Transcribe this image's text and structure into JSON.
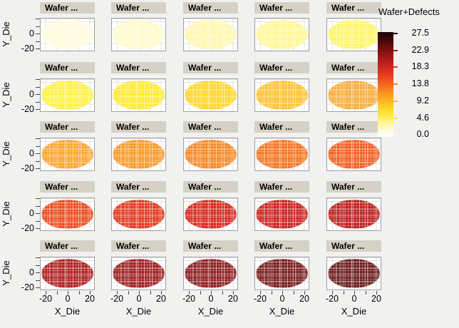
{
  "figure": {
    "background": "#f1f1ef",
    "panel_title_bg": "#d5d1c6"
  },
  "axes": {
    "x_label": "X_Die",
    "y_label": "Y_Die",
    "x_tick_labels": [
      "-20",
      "0",
      "20"
    ],
    "y_tick_labels": [
      "0",
      "-20"
    ]
  },
  "legend": {
    "title": "Wafer+Defects",
    "tick_labels": [
      "27.5",
      "22.9",
      "18.3",
      "13.8",
      "9.2",
      "4.6",
      "0.0"
    ],
    "tick_colors": [
      "#160303",
      "#a81c1c",
      "#e13a1e",
      "#f5831f",
      "#ffb823",
      "#ffe94c",
      "#fdf9d8"
    ]
  },
  "chart_data": {
    "type": "heatmap",
    "layout": "5x5 small-multiple wafer defect maps, defect level increases row by row",
    "xlabel": "X_Die",
    "ylabel": "Y_Die",
    "x_ticks": [
      -20,
      0,
      20
    ],
    "y_ticks": [
      0,
      -20
    ],
    "x_range": [
      -25,
      25
    ],
    "y_range": [
      -25,
      25
    ],
    "colorbar": {
      "title": "Wafer+Defects",
      "ticks": [
        27.5,
        22.9,
        18.3,
        13.8,
        9.2,
        4.6,
        0.0
      ],
      "range": [
        0,
        27.5
      ]
    },
    "wafers": [
      {
        "row": 1,
        "col": 1,
        "title": "Wafer ...",
        "color": "#fffbdc",
        "approx_defect_level": 0.6
      },
      {
        "row": 1,
        "col": 2,
        "title": "Wafer ...",
        "color": "#fffac8",
        "approx_defect_level": 1.7
      },
      {
        "row": 1,
        "col": 3,
        "title": "Wafer ...",
        "color": "#fff8ae",
        "approx_defect_level": 2.8
      },
      {
        "row": 1,
        "col": 4,
        "title": "Wafer ...",
        "color": "#fff793",
        "approx_defect_level": 3.9
      },
      {
        "row": 1,
        "col": 5,
        "title": "Wafer ...",
        "color": "#fff567",
        "approx_defect_level": 5.0
      },
      {
        "row": 2,
        "col": 1,
        "title": "Wafer ...",
        "color": "#fff140",
        "approx_defect_level": 6.1
      },
      {
        "row": 2,
        "col": 2,
        "title": "Wafer ...",
        "color": "#ffe92e",
        "approx_defect_level": 7.2
      },
      {
        "row": 2,
        "col": 3,
        "title": "Wafer ...",
        "color": "#ffd627",
        "approx_defect_level": 8.3
      },
      {
        "row": 2,
        "col": 4,
        "title": "Wafer ...",
        "color": "#ffc231",
        "approx_defect_level": 9.4
      },
      {
        "row": 2,
        "col": 5,
        "title": "Wafer ...",
        "color": "#f6ac3a",
        "approx_defect_level": 10.5
      },
      {
        "row": 3,
        "col": 1,
        "title": "Wafer ...",
        "color": "#fca32c",
        "approx_defect_level": 11.6
      },
      {
        "row": 3,
        "col": 2,
        "title": "Wafer ...",
        "color": "#f99827",
        "approx_defect_level": 12.7
      },
      {
        "row": 3,
        "col": 3,
        "title": "Wafer ...",
        "color": "#f78722",
        "approx_defect_level": 13.8
      },
      {
        "row": 3,
        "col": 4,
        "title": "Wafer ...",
        "color": "#f4731f",
        "approx_defect_level": 14.9
      },
      {
        "row": 3,
        "col": 5,
        "title": "Wafer ...",
        "color": "#f15e1e",
        "approx_defect_level": 16.0
      },
      {
        "row": 4,
        "col": 1,
        "title": "Wafer ...",
        "color": "#ec4b1e",
        "approx_defect_level": 17.1
      },
      {
        "row": 4,
        "col": 2,
        "title": "Wafer ...",
        "color": "#e2371f",
        "approx_defect_level": 18.2
      },
      {
        "row": 4,
        "col": 3,
        "title": "Wafer ...",
        "color": "#d8291f",
        "approx_defect_level": 19.3
      },
      {
        "row": 4,
        "col": 4,
        "title": "Wafer ...",
        "color": "#cb2320",
        "approx_defect_level": 20.4
      },
      {
        "row": 4,
        "col": 5,
        "title": "Wafer ...",
        "color": "#bc2120",
        "approx_defect_level": 21.5
      },
      {
        "row": 5,
        "col": 1,
        "title": "Wafer ...",
        "color": "#af2121",
        "approx_defect_level": 22.6
      },
      {
        "row": 5,
        "col": 2,
        "title": "Wafer ...",
        "color": "#9f2020",
        "approx_defect_level": 23.7
      },
      {
        "row": 5,
        "col": 3,
        "title": "Wafer ...",
        "color": "#8d1f1f",
        "approx_defect_level": 24.8
      },
      {
        "row": 5,
        "col": 4,
        "title": "Wafer ...",
        "color": "#7a1e1e",
        "approx_defect_level": 25.9
      },
      {
        "row": 5,
        "col": 5,
        "title": "Wafer ...",
        "color": "#6c1d1d",
        "approx_defect_level": 27.0
      }
    ]
  }
}
